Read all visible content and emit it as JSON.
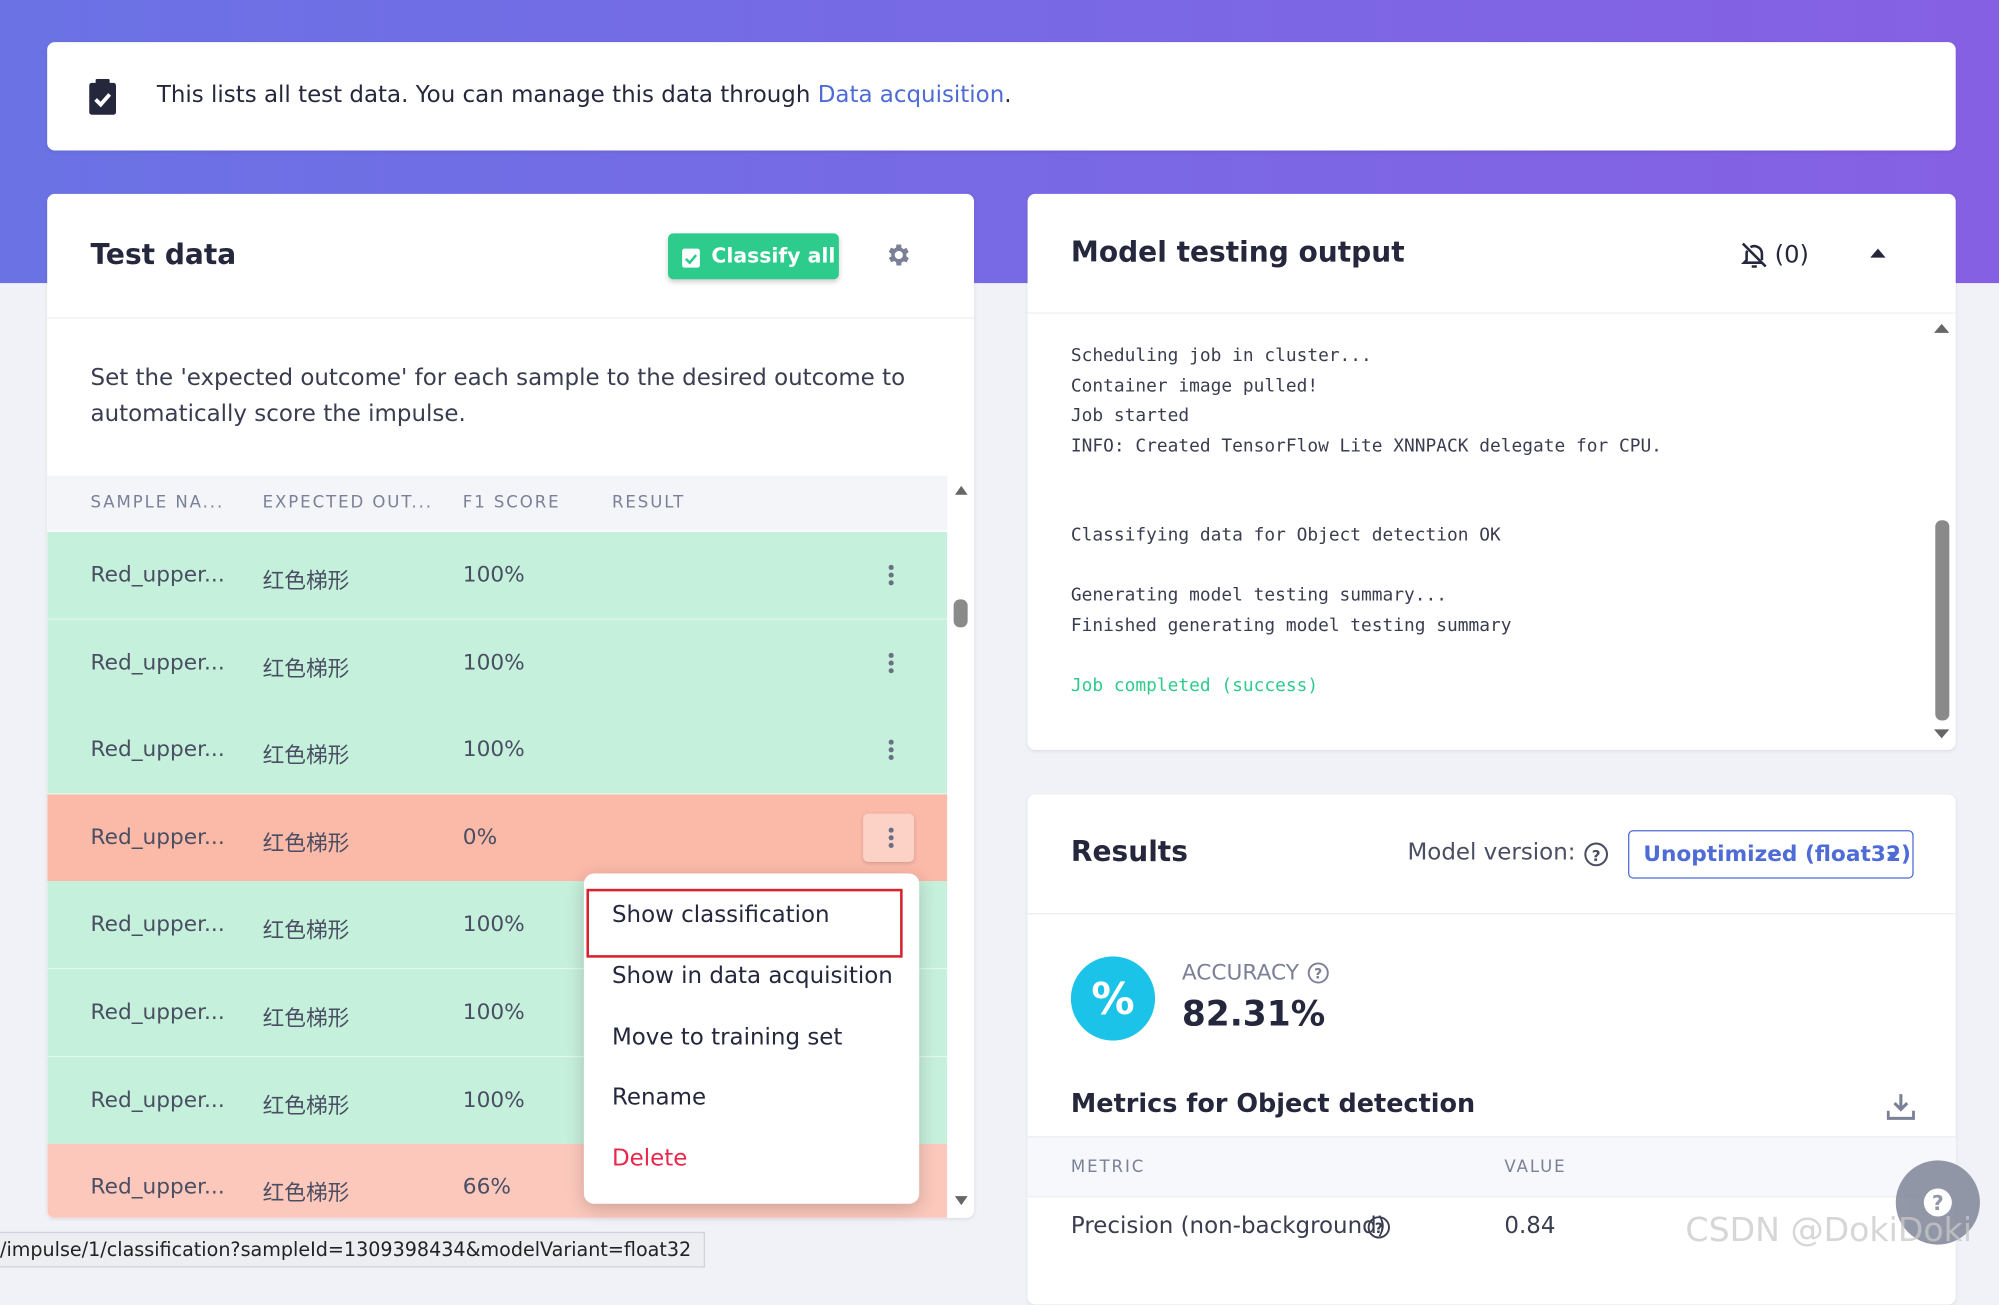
{
  "banner": {
    "text": "This lists all test data. You can manage this data through ",
    "link": "Data acquisition",
    "end": "."
  },
  "test_data": {
    "title": "Test data",
    "button": "Classify all",
    "description": "Set the 'expected outcome' for each sample to the desired outcome to automatically score the impulse.",
    "columns": [
      "SAMPLE NA...",
      "EXPECTED OUT...",
      "F1 SCORE",
      "RESULT"
    ],
    "rows": [
      [
        "Red_upper...",
        "红色梯形",
        "100%"
      ],
      [
        "Red_upper...",
        "红色梯形",
        "100%"
      ],
      [
        "Red_upper...",
        "红色梯形",
        "100%"
      ],
      [
        "Red_upper...",
        "红色梯形",
        "0%"
      ],
      [
        "Red_upper...",
        "红色梯形",
        "100%"
      ],
      [
        "Red_upper...",
        "红色梯形",
        "100%"
      ],
      [
        "Red_upper...",
        "红色梯形",
        "100%"
      ],
      [
        "Red_upper...",
        "红色梯形",
        "66%"
      ]
    ],
    "row_colors": [
      "#c5f0db",
      "#c5f0db",
      "#c5f0db",
      "#fbb9a8",
      "#c5f0db",
      "#c5f0db",
      "#c5f0db",
      "#fcc8bc"
    ],
    "menu": [
      "Show classification",
      "Show in data acquisition",
      "Move to training set",
      "Rename",
      "Delete"
    ]
  },
  "model_output": {
    "title": "Model testing output",
    "notifications": "(0)",
    "log": [
      "Scheduling job in cluster...",
      "Container image pulled!",
      "Job started",
      "INFO: Created TensorFlow Lite XNNPACK delegate for CPU.",
      "",
      "",
      "Classifying data for Object detection OK",
      "",
      "Generating model testing summary...",
      "Finished generating model testing summary",
      "",
      "Job completed (success)"
    ]
  },
  "results": {
    "title": "Results",
    "model_version_label": "Model version:",
    "model_version": "Unoptimized (float32)",
    "accuracy_label": "ACCURACY",
    "accuracy": "82.31%",
    "metrics_title": "Metrics for Object detection",
    "metric_columns": [
      "METRIC",
      "VALUE"
    ],
    "metric_rows": [
      [
        "Precision (non-background)",
        "0.84"
      ]
    ]
  },
  "status_url": "/impulse/1/classification?sampleId=1309398434&modelVariant=float32",
  "watermark": "CSDN @DokiDoki"
}
